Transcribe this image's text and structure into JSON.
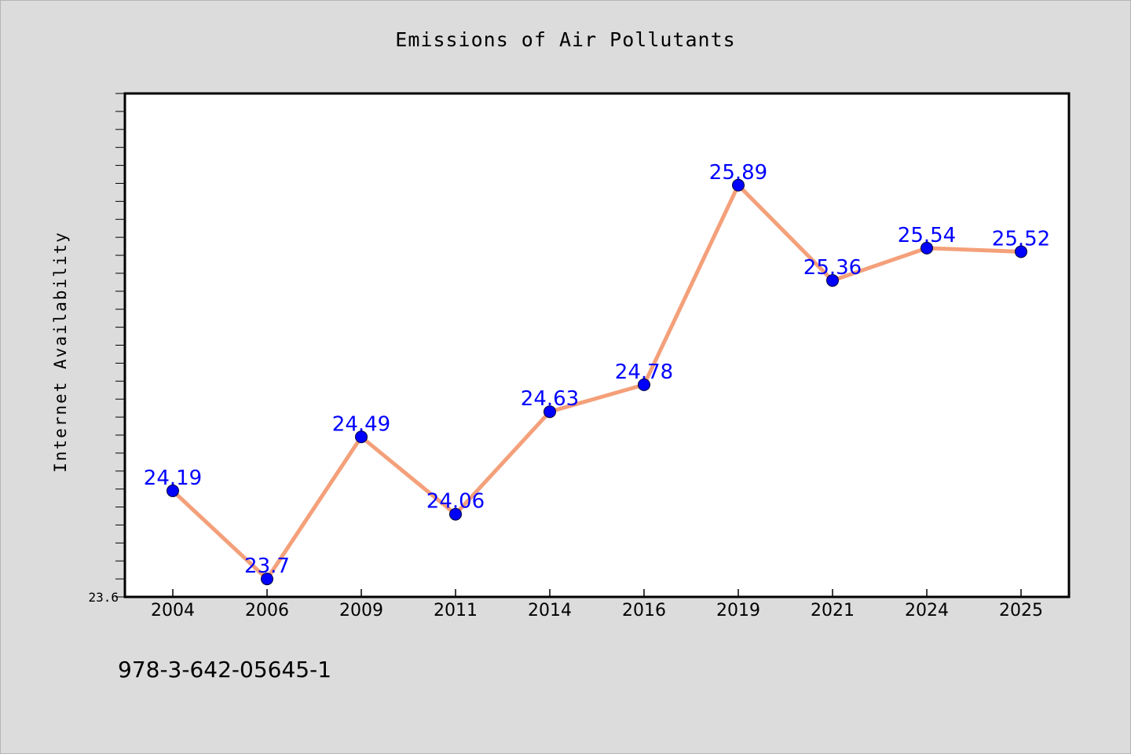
{
  "chart_data": {
    "type": "line",
    "title": "Emissions of Air Pollutants",
    "xlabel": "",
    "ylabel": "Internet Availability",
    "categories": [
      "2004",
      "2006",
      "2009",
      "2011",
      "2014",
      "2016",
      "2019",
      "2021",
      "2024",
      "2025"
    ],
    "series": [
      {
        "values": [
          24.19,
          23.7,
          24.49,
          24.06,
          24.63,
          24.78,
          25.89,
          25.36,
          25.54,
          25.52
        ]
      }
    ],
    "data_labels": [
      "24.19",
      "23.7",
      "24.49",
      "24.06",
      "24.63",
      "24.78",
      "25.89",
      "25.36",
      "25.54",
      "25.52"
    ],
    "y_tick_labels": [
      "23.6"
    ],
    "ylim": [
      23.6,
      26.4
    ],
    "grid": false,
    "legend": "none",
    "colors": {
      "line": "#f4a07a",
      "marker": "#0000ff",
      "data_label": "#0000ff",
      "background": "#dcdcdc",
      "plot_area": "#ffffff"
    }
  },
  "footer": {
    "code": "978-3-642-05645-1"
  }
}
